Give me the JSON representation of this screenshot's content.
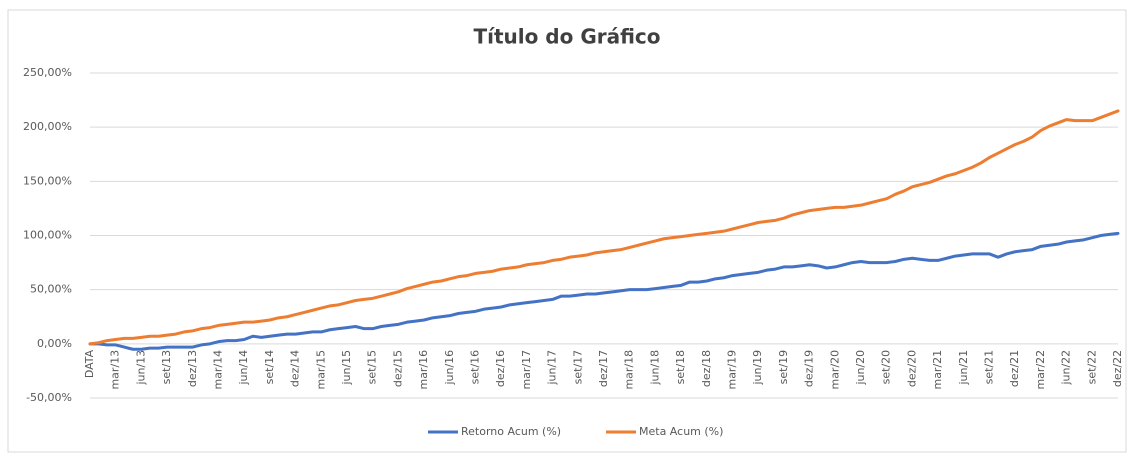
{
  "chart_data": {
    "type": "line",
    "title": "Título do Gráfico",
    "categories": [
      "DATA",
      null,
      null,
      "mar/13",
      null,
      null,
      "jun/13",
      null,
      null,
      "set/13",
      null,
      null,
      "dez/13",
      null,
      null,
      "mar/14",
      null,
      null,
      "jun/14",
      null,
      null,
      "set/14",
      null,
      null,
      "dez/14",
      null,
      null,
      "mar/15",
      null,
      null,
      "jun/15",
      null,
      null,
      "set/15",
      null,
      null,
      "dez/15",
      null,
      null,
      "mar/16",
      null,
      null,
      "jun/16",
      null,
      null,
      "set/16",
      null,
      null,
      "dez/16",
      null,
      null,
      "mar/17",
      null,
      null,
      "jun/17",
      null,
      null,
      "set/17",
      null,
      null,
      "dez/17",
      null,
      null,
      "mar/18",
      null,
      null,
      "jun/18",
      null,
      null,
      "set/18",
      null,
      null,
      "dez/18",
      null,
      null,
      "mar/19",
      null,
      null,
      "jun/19",
      null,
      null,
      "set/19",
      null,
      null,
      "dez/19",
      null,
      null,
      "mar/20",
      null,
      null,
      "jun/20",
      null,
      null,
      "set/20",
      null,
      null,
      "dez/20",
      null,
      null,
      "mar/21",
      null,
      null,
      "jun/21",
      null,
      null,
      "set/21",
      null,
      null,
      "dez/21",
      null,
      null,
      "mar/22",
      null,
      null,
      "jun/22",
      null,
      null,
      "set/22",
      null,
      null,
      "dez/22"
    ],
    "series": [
      {
        "name": "Retorno Acum (%)",
        "color": "#4472c4",
        "values": [
          0,
          0,
          -1,
          -1,
          -3,
          -5,
          -5,
          -4,
          -4,
          -3,
          -3,
          -3,
          -3,
          -1,
          0,
          2,
          3,
          3,
          4,
          7,
          6,
          7,
          8,
          9,
          9,
          10,
          11,
          11,
          13,
          14,
          15,
          16,
          14,
          14,
          16,
          17,
          18,
          20,
          21,
          22,
          24,
          25,
          26,
          28,
          29,
          30,
          32,
          33,
          34,
          36,
          37,
          38,
          39,
          40,
          41,
          44,
          44,
          45,
          46,
          46,
          47,
          48,
          49,
          50,
          50,
          50,
          51,
          52,
          53,
          54,
          57,
          57,
          58,
          60,
          61,
          63,
          64,
          65,
          66,
          68,
          69,
          71,
          71,
          72,
          73,
          72,
          70,
          71,
          73,
          75,
          76,
          75,
          75,
          75,
          76,
          78,
          79,
          78,
          77,
          77,
          79,
          81,
          82,
          83,
          83,
          83,
          80,
          83,
          85,
          86,
          87,
          90,
          91,
          92,
          94,
          95,
          96,
          98,
          100,
          101,
          102
        ]
      },
      {
        "name": "Meta Acum (%)",
        "color": "#ed7d31",
        "values": [
          0,
          1,
          3,
          4,
          5,
          5,
          6,
          7,
          7,
          8,
          9,
          11,
          12,
          14,
          15,
          17,
          18,
          19,
          20,
          20,
          21,
          22,
          24,
          25,
          27,
          29,
          31,
          33,
          35,
          36,
          38,
          40,
          41,
          42,
          44,
          46,
          48,
          51,
          53,
          55,
          57,
          58,
          60,
          62,
          63,
          65,
          66,
          67,
          69,
          70,
          71,
          73,
          74,
          75,
          77,
          78,
          80,
          81,
          82,
          84,
          85,
          86,
          87,
          89,
          91,
          93,
          95,
          97,
          98,
          99,
          100,
          101,
          102,
          103,
          104,
          106,
          108,
          110,
          112,
          113,
          114,
          116,
          119,
          121,
          123,
          124,
          125,
          126,
          126,
          127,
          128,
          130,
          132,
          134,
          138,
          141,
          145,
          147,
          149,
          152,
          155,
          157,
          160,
          163,
          167,
          172,
          176,
          180,
          184,
          187,
          191,
          197,
          201,
          204,
          207,
          206,
          206,
          206,
          209,
          212,
          215
        ]
      }
    ],
    "ylim": [
      -50,
      250
    ],
    "yticks": [
      {
        "value": -50,
        "label": "-50,00%"
      },
      {
        "value": 0,
        "label": "0,00%"
      },
      {
        "value": 50,
        "label": "50,00%"
      },
      {
        "value": 100,
        "label": "100,00%"
      },
      {
        "value": 150,
        "label": "150,00%"
      },
      {
        "value": 200,
        "label": "200,00%"
      },
      {
        "value": 250,
        "label": "250,00%"
      }
    ],
    "grid": true,
    "legend": "bottom"
  }
}
